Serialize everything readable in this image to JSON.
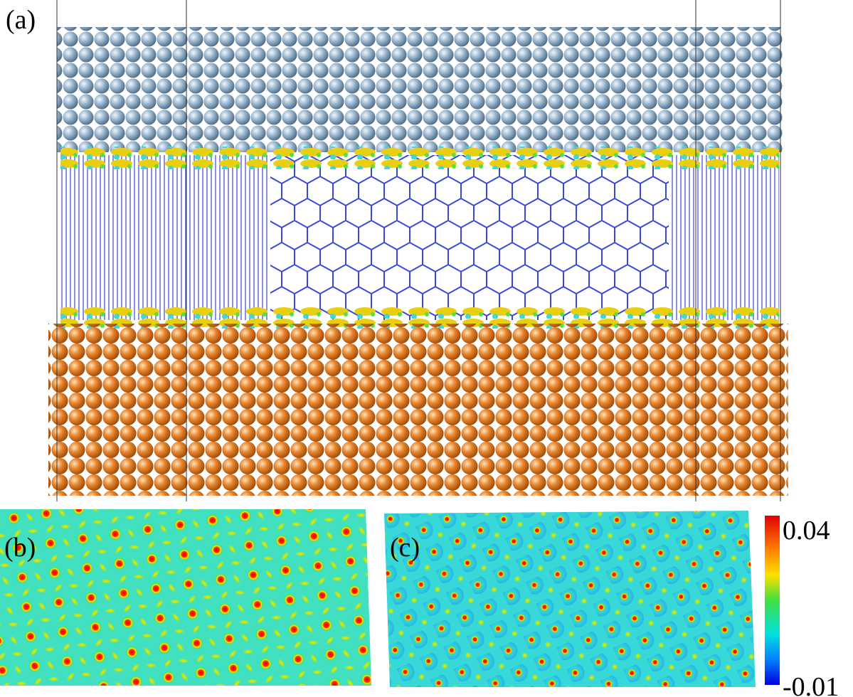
{
  "panels": [
    {
      "label": "(a)"
    },
    {
      "label": "(b)"
    },
    {
      "label": "(c)"
    }
  ],
  "colorbar": {
    "max_label": "0.04",
    "min_label": "-0.01"
  }
}
